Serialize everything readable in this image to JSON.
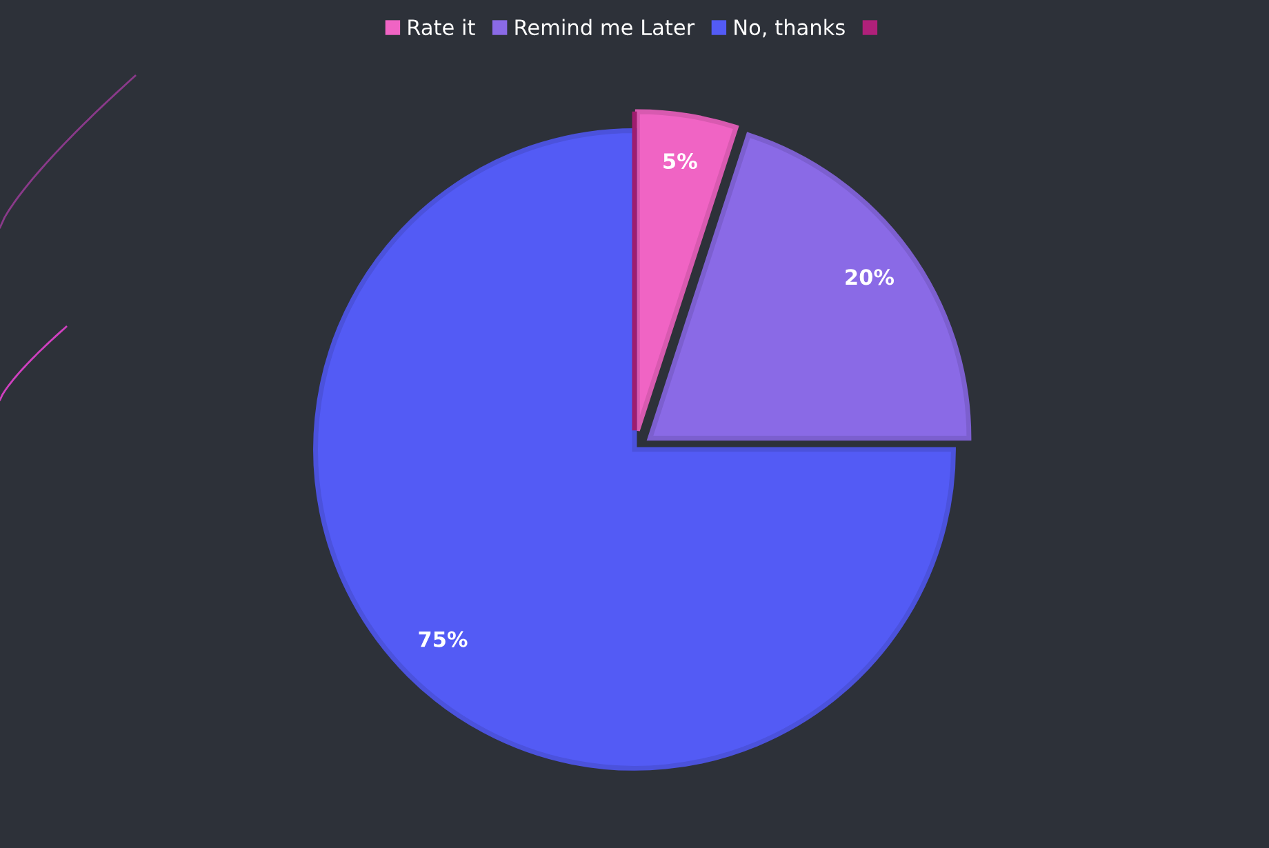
{
  "chart_data": {
    "type": "pie",
    "categories": [
      "Rate it",
      "Remind me Later",
      "No, thanks",
      null
    ],
    "values": [
      5,
      20,
      75,
      0
    ],
    "colors": [
      "#f064c4",
      "#8a6ae6",
      "#535bf5",
      "#b0207a"
    ],
    "value_labels": [
      "5%",
      "20%",
      "75%",
      null
    ],
    "legend": "top"
  }
}
